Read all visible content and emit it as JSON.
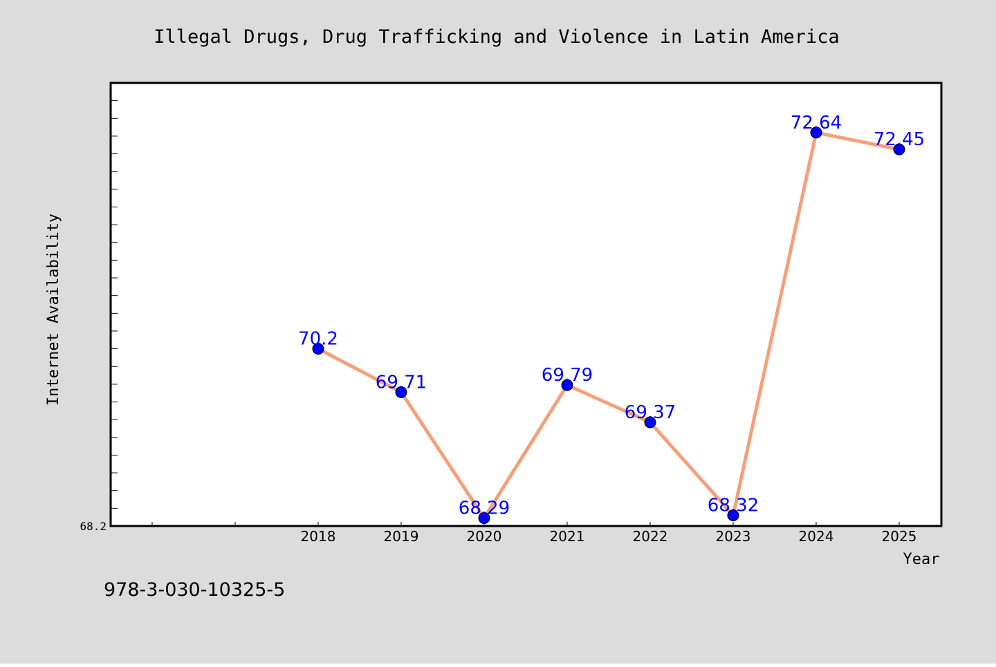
{
  "chart_data": {
    "type": "line",
    "title": "Illegal Drugs, Drug Trafficking and Violence in Latin America",
    "xlabel": "Year",
    "ylabel": "Internet Availability",
    "x": [
      "2018",
      "2019",
      "2020",
      "2021",
      "2022",
      "2023",
      "2024",
      "2025"
    ],
    "series": [
      {
        "values": [
          70.2,
          69.71,
          68.29,
          69.79,
          69.37,
          68.32,
          72.64,
          72.45
        ]
      }
    ],
    "data_labels": [
      "70.2",
      "69.71",
      "68.29",
      "69.79",
      "69.37",
      "68.32",
      "72.64",
      "72.45"
    ],
    "ytick_labels": [
      "68.2"
    ],
    "ylim": [
      68.2,
      73.2
    ],
    "grid": false,
    "legend": "none"
  },
  "caption": "978-3-030-10325-5",
  "colors": {
    "background": "#dcdcdc",
    "plot_area": "#ffffff",
    "line": "#f4a07a",
    "marker": "#0000ff",
    "data_label": "#0000ff"
  }
}
